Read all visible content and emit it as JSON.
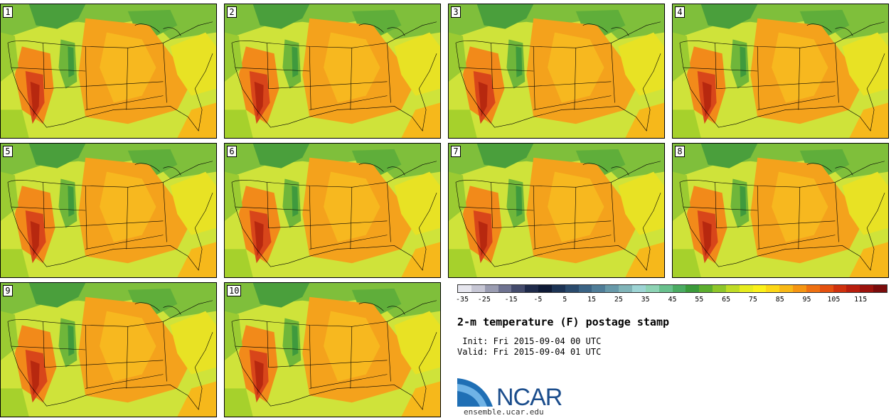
{
  "panels": [
    {
      "label": "1"
    },
    {
      "label": "2"
    },
    {
      "label": "3"
    },
    {
      "label": "4"
    },
    {
      "label": "5"
    },
    {
      "label": "6"
    },
    {
      "label": "7"
    },
    {
      "label": "8"
    },
    {
      "label": "9"
    },
    {
      "label": "10"
    }
  ],
  "colorbar": {
    "colors": [
      "#e6e6ee",
      "#c6c6d4",
      "#9a9cb1",
      "#6e7290",
      "#434a6b",
      "#1f2a4a",
      "#0e1a36",
      "#1c3354",
      "#2a4a6c",
      "#3a6384",
      "#4f7d98",
      "#6799a9",
      "#80b4b8",
      "#9dd4d4",
      "#8dd3b4",
      "#68c08d",
      "#4aab62",
      "#3a9a3a",
      "#5cae2e",
      "#8ec62a",
      "#bfdc26",
      "#e6ec1e",
      "#fbf11a",
      "#fcd716",
      "#f8b816",
      "#f59512",
      "#ee7011",
      "#e4500f",
      "#cf310d",
      "#b81e0d",
      "#9c130d",
      "#7a0c0c"
    ],
    "ticks": [
      "-35",
      "-25",
      "-15",
      "-5",
      "5",
      "15",
      "25",
      "35",
      "45",
      "55",
      "65",
      "75",
      "85",
      "95",
      "105",
      "115"
    ]
  },
  "title": "2-m temperature (F) postage stamp",
  "init": " Init: Fri 2015-09-04 00 UTC",
  "valid": "Valid: Fri 2015-09-04 01 UTC",
  "logo": {
    "name": "NCAR",
    "url": "ensemble.ucar.edu"
  }
}
